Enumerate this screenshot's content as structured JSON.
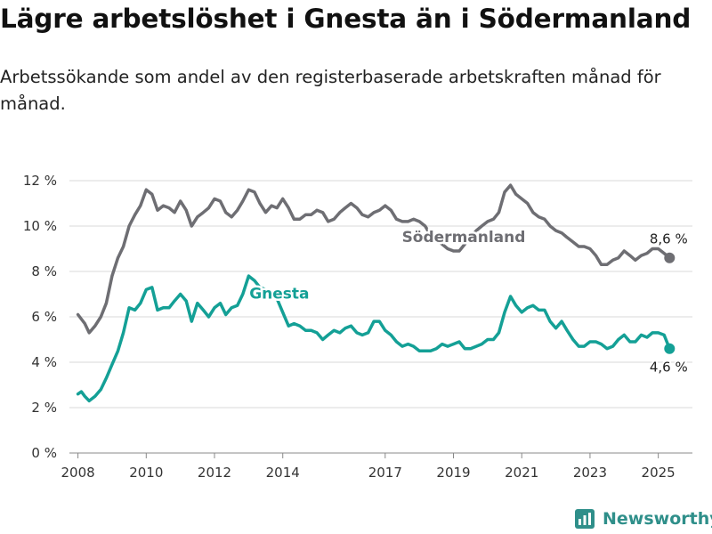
{
  "title": "Lägre arbetslöshet i Gnesta än i Södermanland",
  "subtitle": "Arbetssökande som andel av den registerbaserade arbetskraften månad för månad.",
  "brand": "Newsworthy",
  "colors": {
    "sodermanland": "#6e6e73",
    "gnesta": "#14a096",
    "grid": "#d9d9d9",
    "brand": "#2f8f8a"
  },
  "chart_data": {
    "type": "line",
    "title": "Lägre arbetslöshet i Gnesta än i Södermanland",
    "ylim": [
      0,
      12
    ],
    "xlim": [
      2007.75,
      2026.0
    ],
    "yticks": [
      0,
      2,
      4,
      6,
      8,
      10,
      12
    ],
    "ytick_labels": [
      "0 %",
      "2 %",
      "4 %",
      "6 %",
      "8 %",
      "10 %",
      "12 %"
    ],
    "xticks": [
      2008,
      2010,
      2012,
      2014,
      2017,
      2019,
      2021,
      2023,
      2025
    ],
    "xtick_labels": [
      "2008",
      "2010",
      "2012",
      "2014",
      "2017",
      "2019",
      "2021",
      "2023",
      "2025"
    ],
    "grid": true,
    "series": [
      {
        "name": "Södermanland",
        "end_label": "8,6 %",
        "points": [
          [
            2008.0,
            6.1
          ],
          [
            2008.1,
            5.9
          ],
          [
            2008.2,
            5.7
          ],
          [
            2008.33,
            5.3
          ],
          [
            2008.5,
            5.6
          ],
          [
            2008.67,
            6.0
          ],
          [
            2008.83,
            6.6
          ],
          [
            2009.0,
            7.8
          ],
          [
            2009.17,
            8.6
          ],
          [
            2009.33,
            9.1
          ],
          [
            2009.5,
            10.0
          ],
          [
            2009.67,
            10.5
          ],
          [
            2009.83,
            10.9
          ],
          [
            2010.0,
            11.6
          ],
          [
            2010.17,
            11.4
          ],
          [
            2010.33,
            10.7
          ],
          [
            2010.5,
            10.9
          ],
          [
            2010.67,
            10.8
          ],
          [
            2010.83,
            10.6
          ],
          [
            2011.0,
            11.1
          ],
          [
            2011.17,
            10.7
          ],
          [
            2011.33,
            10.0
          ],
          [
            2011.5,
            10.4
          ],
          [
            2011.67,
            10.6
          ],
          [
            2011.83,
            10.8
          ],
          [
            2012.0,
            11.2
          ],
          [
            2012.17,
            11.1
          ],
          [
            2012.33,
            10.6
          ],
          [
            2012.5,
            10.4
          ],
          [
            2012.67,
            10.7
          ],
          [
            2012.83,
            11.1
          ],
          [
            2013.0,
            11.6
          ],
          [
            2013.17,
            11.5
          ],
          [
            2013.33,
            11.0
          ],
          [
            2013.5,
            10.6
          ],
          [
            2013.67,
            10.9
          ],
          [
            2013.83,
            10.8
          ],
          [
            2014.0,
            11.2
          ],
          [
            2014.17,
            10.8
          ],
          [
            2014.33,
            10.3
          ],
          [
            2014.5,
            10.3
          ],
          [
            2014.67,
            10.5
          ],
          [
            2014.83,
            10.5
          ],
          [
            2015.0,
            10.7
          ],
          [
            2015.17,
            10.6
          ],
          [
            2015.33,
            10.2
          ],
          [
            2015.5,
            10.3
          ],
          [
            2015.67,
            10.6
          ],
          [
            2015.83,
            10.8
          ],
          [
            2016.0,
            11.0
          ],
          [
            2016.17,
            10.8
          ],
          [
            2016.33,
            10.5
          ],
          [
            2016.5,
            10.4
          ],
          [
            2016.67,
            10.6
          ],
          [
            2016.83,
            10.7
          ],
          [
            2017.0,
            10.9
          ],
          [
            2017.17,
            10.7
          ],
          [
            2017.33,
            10.3
          ],
          [
            2017.5,
            10.2
          ],
          [
            2017.67,
            10.2
          ],
          [
            2017.83,
            10.3
          ],
          [
            2018.0,
            10.2
          ],
          [
            2018.17,
            10.0
          ],
          [
            2018.33,
            9.6
          ],
          [
            2018.5,
            9.4
          ],
          [
            2018.67,
            9.2
          ],
          [
            2018.83,
            9.0
          ],
          [
            2019.0,
            8.9
          ],
          [
            2019.17,
            8.9
          ],
          [
            2019.33,
            9.2
          ],
          [
            2019.5,
            9.5
          ],
          [
            2019.67,
            9.8
          ],
          [
            2019.83,
            10.0
          ],
          [
            2020.0,
            10.2
          ],
          [
            2020.17,
            10.3
          ],
          [
            2020.33,
            10.6
          ],
          [
            2020.5,
            11.5
          ],
          [
            2020.67,
            11.8
          ],
          [
            2020.83,
            11.4
          ],
          [
            2021.0,
            11.2
          ],
          [
            2021.17,
            11.0
          ],
          [
            2021.33,
            10.6
          ],
          [
            2021.5,
            10.4
          ],
          [
            2021.67,
            10.3
          ],
          [
            2021.83,
            10.0
          ],
          [
            2022.0,
            9.8
          ],
          [
            2022.17,
            9.7
          ],
          [
            2022.33,
            9.5
          ],
          [
            2022.5,
            9.3
          ],
          [
            2022.67,
            9.1
          ],
          [
            2022.83,
            9.1
          ],
          [
            2023.0,
            9.0
          ],
          [
            2023.17,
            8.7
          ],
          [
            2023.33,
            8.3
          ],
          [
            2023.5,
            8.3
          ],
          [
            2023.67,
            8.5
          ],
          [
            2023.83,
            8.6
          ],
          [
            2024.0,
            8.9
          ],
          [
            2024.17,
            8.7
          ],
          [
            2024.33,
            8.5
          ],
          [
            2024.5,
            8.7
          ],
          [
            2024.67,
            8.8
          ],
          [
            2024.83,
            9.0
          ],
          [
            2025.0,
            9.0
          ],
          [
            2025.17,
            8.8
          ],
          [
            2025.33,
            8.6
          ]
        ]
      },
      {
        "name": "Gnesta",
        "end_label": "4,6 %",
        "points": [
          [
            2008.0,
            2.6
          ],
          [
            2008.1,
            2.7
          ],
          [
            2008.2,
            2.5
          ],
          [
            2008.33,
            2.3
          ],
          [
            2008.5,
            2.5
          ],
          [
            2008.67,
            2.8
          ],
          [
            2008.83,
            3.3
          ],
          [
            2009.0,
            3.9
          ],
          [
            2009.17,
            4.5
          ],
          [
            2009.33,
            5.3
          ],
          [
            2009.5,
            6.4
          ],
          [
            2009.67,
            6.3
          ],
          [
            2009.83,
            6.6
          ],
          [
            2010.0,
            7.2
          ],
          [
            2010.17,
            7.3
          ],
          [
            2010.33,
            6.3
          ],
          [
            2010.5,
            6.4
          ],
          [
            2010.67,
            6.4
          ],
          [
            2010.83,
            6.7
          ],
          [
            2011.0,
            7.0
          ],
          [
            2011.17,
            6.7
          ],
          [
            2011.33,
            5.8
          ],
          [
            2011.5,
            6.6
          ],
          [
            2011.67,
            6.3
          ],
          [
            2011.83,
            6.0
          ],
          [
            2012.0,
            6.4
          ],
          [
            2012.17,
            6.6
          ],
          [
            2012.33,
            6.1
          ],
          [
            2012.5,
            6.4
          ],
          [
            2012.67,
            6.5
          ],
          [
            2012.83,
            7.0
          ],
          [
            2013.0,
            7.8
          ],
          [
            2013.17,
            7.6
          ],
          [
            2013.33,
            7.3
          ],
          [
            2013.5,
            7.2
          ],
          [
            2013.67,
            7.1
          ],
          [
            2013.83,
            6.8
          ],
          [
            2014.0,
            6.2
          ],
          [
            2014.17,
            5.6
          ],
          [
            2014.33,
            5.7
          ],
          [
            2014.5,
            5.6
          ],
          [
            2014.67,
            5.4
          ],
          [
            2014.83,
            5.4
          ],
          [
            2015.0,
            5.3
          ],
          [
            2015.17,
            5.0
          ],
          [
            2015.33,
            5.2
          ],
          [
            2015.5,
            5.4
          ],
          [
            2015.67,
            5.3
          ],
          [
            2015.83,
            5.5
          ],
          [
            2016.0,
            5.6
          ],
          [
            2016.17,
            5.3
          ],
          [
            2016.33,
            5.2
          ],
          [
            2016.5,
            5.3
          ],
          [
            2016.67,
            5.8
          ],
          [
            2016.83,
            5.8
          ],
          [
            2017.0,
            5.4
          ],
          [
            2017.17,
            5.2
          ],
          [
            2017.33,
            4.9
          ],
          [
            2017.5,
            4.7
          ],
          [
            2017.67,
            4.8
          ],
          [
            2017.83,
            4.7
          ],
          [
            2018.0,
            4.5
          ],
          [
            2018.17,
            4.5
          ],
          [
            2018.33,
            4.5
          ],
          [
            2018.5,
            4.6
          ],
          [
            2018.67,
            4.8
          ],
          [
            2018.83,
            4.7
          ],
          [
            2019.0,
            4.8
          ],
          [
            2019.17,
            4.9
          ],
          [
            2019.33,
            4.6
          ],
          [
            2019.5,
            4.6
          ],
          [
            2019.67,
            4.7
          ],
          [
            2019.83,
            4.8
          ],
          [
            2020.0,
            5.0
          ],
          [
            2020.17,
            5.0
          ],
          [
            2020.33,
            5.3
          ],
          [
            2020.5,
            6.2
          ],
          [
            2020.67,
            6.9
          ],
          [
            2020.83,
            6.5
          ],
          [
            2021.0,
            6.2
          ],
          [
            2021.17,
            6.4
          ],
          [
            2021.33,
            6.5
          ],
          [
            2021.5,
            6.3
          ],
          [
            2021.67,
            6.3
          ],
          [
            2021.83,
            5.8
          ],
          [
            2022.0,
            5.5
          ],
          [
            2022.17,
            5.8
          ],
          [
            2022.33,
            5.4
          ],
          [
            2022.5,
            5.0
          ],
          [
            2022.67,
            4.7
          ],
          [
            2022.83,
            4.7
          ],
          [
            2023.0,
            4.9
          ],
          [
            2023.17,
            4.9
          ],
          [
            2023.33,
            4.8
          ],
          [
            2023.5,
            4.6
          ],
          [
            2023.67,
            4.7
          ],
          [
            2023.83,
            5.0
          ],
          [
            2024.0,
            5.2
          ],
          [
            2024.17,
            4.9
          ],
          [
            2024.33,
            4.9
          ],
          [
            2024.5,
            5.2
          ],
          [
            2024.67,
            5.1
          ],
          [
            2024.83,
            5.3
          ],
          [
            2025.0,
            5.3
          ],
          [
            2025.17,
            5.2
          ],
          [
            2025.33,
            4.6
          ]
        ]
      }
    ]
  }
}
